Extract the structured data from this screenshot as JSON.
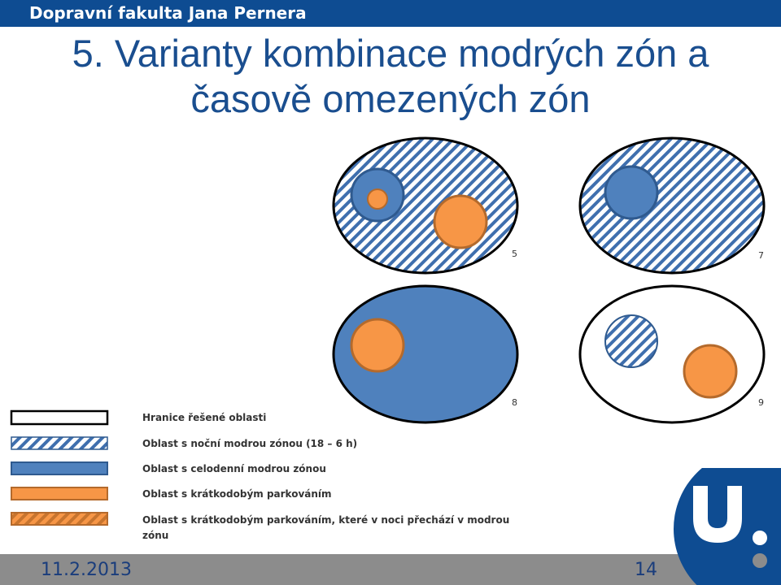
{
  "header": {
    "institution": "Dopravní fakulta Jana Pernera"
  },
  "slide": {
    "title_line1": "5. Varianty kombinace modrých zón a",
    "title_line2": "časově omezených zón"
  },
  "colors": {
    "blue_zone": "#4f81bd",
    "blue_border": "#2f5a8f",
    "orange": "#f79646",
    "orange_border": "#b46a2c",
    "hatch_blue": "#3f6fae",
    "hatch_orange": "#c7742e"
  },
  "variants": [
    {
      "number": "5"
    },
    {
      "number": "7"
    },
    {
      "number": "8"
    },
    {
      "number": "9"
    }
  ],
  "legend": [
    {
      "label": "Hranice řešené oblasti"
    },
    {
      "label": "Oblast s noční modrou zónou (18 – 6 h)"
    },
    {
      "label": "Oblast s celodenní modrou zónou"
    },
    {
      "label": "Oblast s krátkodobým parkováním"
    },
    {
      "label": "Oblast s krátkodobým parkováním, které v noci přechází v modrou"
    },
    {
      "label": "zónu"
    }
  ],
  "footer": {
    "date": "11.2.2013",
    "page": "14"
  }
}
